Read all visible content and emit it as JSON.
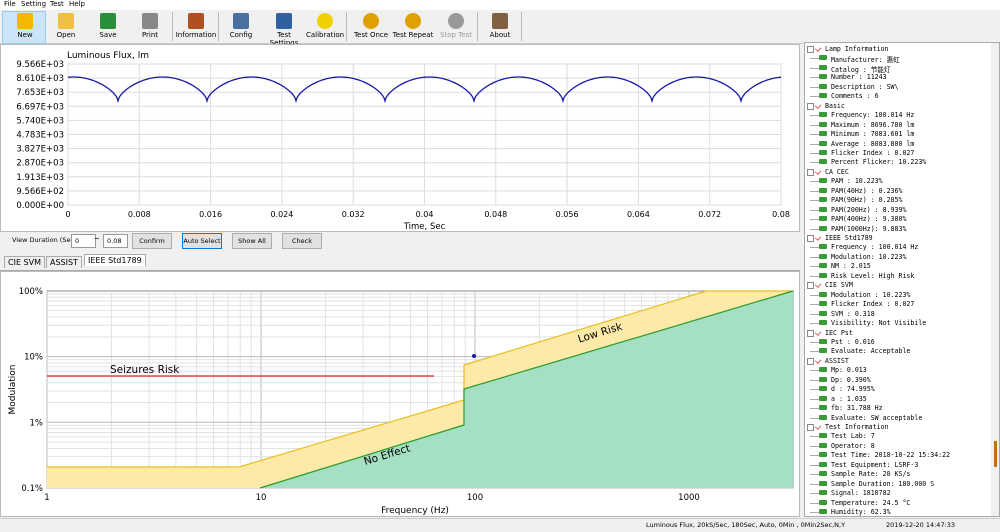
{
  "menu": [
    "File",
    "Setting",
    "Test",
    "Help"
  ],
  "toolbar": [
    "New",
    "Open",
    "Save",
    "Print",
    "Information",
    "Config",
    "Test Settings",
    "Calibration",
    "Test Once",
    "Test Repeat",
    "Stop Test",
    "About"
  ],
  "flux_chart": {
    "title": "Luminous Flux, lm",
    "y_labels": [
      "9.566E+03",
      "8.610E+03",
      "7.653E+03",
      "6.697E+03",
      "5.740E+03",
      "4.783E+03",
      "3.827E+03",
      "2.870E+03",
      "1.913E+03",
      "9.566E+02",
      "0.000E+00"
    ],
    "x_labels": [
      "0",
      "0.008",
      "0.016",
      "0.024",
      "0.032",
      "0.04",
      "0.048",
      "0.056",
      "0.064",
      "0.072",
      "0.08"
    ],
    "x_axis_label": "Time, Sec"
  },
  "controls": {
    "duration_label": "View Duration (Sec)",
    "from": "0",
    "separator": "~",
    "to": "0.08",
    "buttons": [
      "Confirm",
      "Auto Select",
      "Show All",
      "Check"
    ]
  },
  "tabs": [
    "CIE SVM",
    "ASSIST",
    "IEEE Std1789"
  ],
  "ieee_chart": {
    "y_labels": [
      "100%",
      "10%",
      "1%",
      "0.1%"
    ],
    "x_labels": [
      "1",
      "10",
      "100",
      "1000"
    ],
    "y_axis_label": "Modulation",
    "x_axis_label": "Frequency (Hz)",
    "seizures": "Seizures Risk",
    "low_risk": "Low Risk",
    "no_effect": "No Effect"
  },
  "tree": [
    {
      "title": "Lamp Information",
      "items": [
        "Manufacturer: 惠虹",
        "Catalog     : 节能灯",
        "Number      : 11243",
        "Description : SW\\",
        "Comments    : 6"
      ]
    },
    {
      "title": "Basic",
      "items": [
        "Frequency: 100.014 Hz",
        "Maximum  : 8696.780 lm",
        "Minimum  : 7083.601 lm",
        "Average  : 8083.800 lm",
        "Flicker Index  : 0.027",
        "Percent Flicker: 10.223%"
      ]
    },
    {
      "title": "CA CEC",
      "items": [
        "PAM        : 10.223%",
        "PAM(40Hz)  : 0.236%",
        "PAM(90Hz)  : 0.285%",
        "PAM(200Hz) : 8.939%",
        "PAM(400Hz) : 9.380%",
        "PAM(1000Hz): 9.883%"
      ]
    },
    {
      "title": "IEEE Std1789",
      "items": [
        "Frequency : 100.014 Hz",
        "Modulation: 10.223%",
        "NM        : 2.015",
        "Risk Level: High Risk"
      ]
    },
    {
      "title": "CIE SVM",
      "items": [
        "Modulation    : 10.223%",
        "Flicker Index : 0.027",
        "SVM           : 0.318",
        "Visibility: Not Visibile"
      ]
    },
    {
      "title": "IEC Pst",
      "items": [
        "Pst      : 0.016",
        "Evaluate: Acceptable"
      ]
    },
    {
      "title": "ASSIST",
      "items": [
        "Mp: 0.013",
        "Dp: 0.390%",
        "d : 74.995%",
        "a : 1.035",
        "fb: 31.788 Hz",
        "Evaluate: SW acceptable"
      ]
    },
    {
      "title": "Test Information",
      "items": [
        "Test Lab: 7",
        "Operator: 8",
        "Test Time: 2018-10-22 15:34:22",
        "Test Equipment: LSRF-3",
        "Sample Rate: 20 KS/s",
        "Sample Duration: 180.000 S",
        "Signal: 1810782",
        "Temperature: 24.5 °C",
        "Humidity: 62.3%"
      ]
    }
  ],
  "status": [
    "Luminous Flux, 20kS/Sec, 180Sec,  Auto, 0Min , 0Min2Sec,N,Y",
    "2019-12-20 14:47:33"
  ]
}
